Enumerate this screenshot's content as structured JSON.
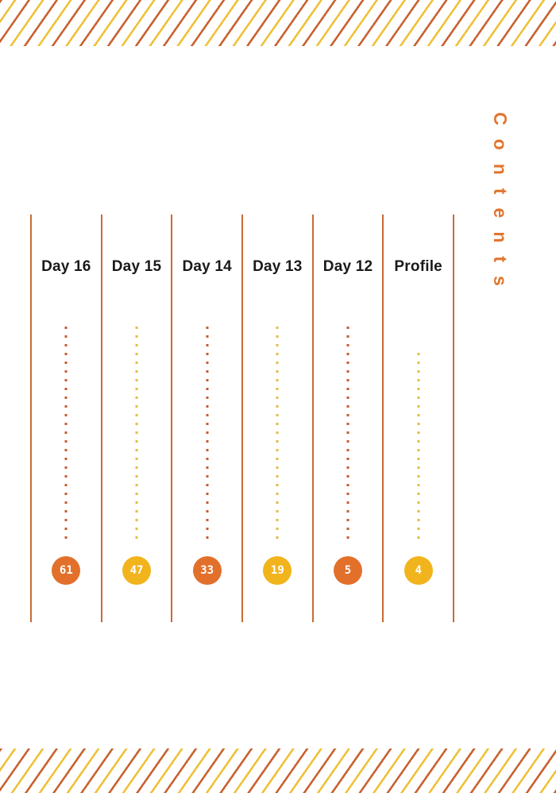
{
  "page": {
    "vertical_title": "Contents",
    "colors": {
      "page_bg": "#ffffff",
      "stripe_orange": "#c96230",
      "stripe_yellow": "#efc13a",
      "divider": "#c96b35",
      "title_orange": "#e0762f",
      "heading_text": "#1a1a1a",
      "circle_orange": "#e2702b",
      "circle_yellow": "#f2b41c",
      "dot_orange": "#c75c30",
      "dot_yellow": "#e2bc45",
      "page_number_text": "#ffffff"
    }
  },
  "toc": {
    "entries": [
      {
        "label": "Day 16",
        "page_number": "61",
        "color": "orange",
        "dot_count": 25
      },
      {
        "label": "Day 15",
        "page_number": "47",
        "color": "yellow",
        "dot_count": 25
      },
      {
        "label": "Day 14",
        "page_number": "33",
        "color": "orange",
        "dot_count": 25
      },
      {
        "label": "Day 13",
        "page_number": "19",
        "color": "yellow",
        "dot_count": 25
      },
      {
        "label": "Day 12",
        "page_number": "5",
        "color": "orange",
        "dot_count": 25
      },
      {
        "label": "Profile",
        "page_number": "4",
        "color": "yellow",
        "dot_count": 22
      }
    ]
  }
}
